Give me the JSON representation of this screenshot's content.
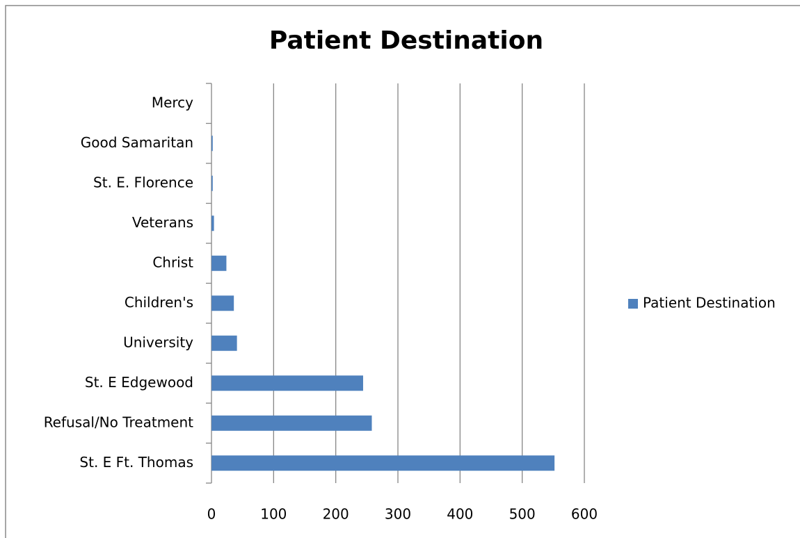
{
  "chart_data": {
    "type": "barh",
    "title": "Patient Destination",
    "categories": [
      "Mercy",
      "Good Samaritan",
      "St. E. Florence",
      "Veterans",
      "Christ",
      "Children's",
      "University",
      "St. E Edgewood",
      "Refusal/No Treatment",
      "St. E Ft. Thomas"
    ],
    "series": [
      {
        "name": "Patient Destination",
        "color": "#4f81bd",
        "values": [
          0,
          2,
          2,
          4,
          24,
          36,
          41,
          244,
          258,
          552
        ]
      }
    ],
    "xlim": [
      0,
      600
    ],
    "xticks": [
      0,
      100,
      200,
      300,
      400,
      500,
      600
    ],
    "grid": true,
    "legend": "right"
  }
}
